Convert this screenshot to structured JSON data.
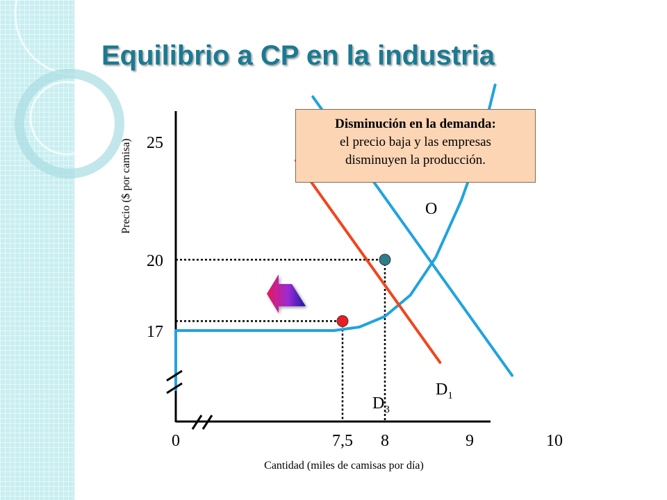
{
  "slide": {
    "title": "Equilibrio a CP en la industria"
  },
  "callout": {
    "heading": "Disminución en la demanda:",
    "body_line1": "el precio baja y las empresas",
    "body_line2": "disminuyen la producción."
  },
  "chart_data": {
    "type": "line",
    "title": "",
    "xlabel": "Cantidad (miles de camisas por día)",
    "ylabel": "Precio ($ por camisa)",
    "x_ticks": [
      {
        "value": 0,
        "label": "0"
      },
      {
        "value": 7.5,
        "label": "7,5"
      },
      {
        "value": 8,
        "label": "8"
      },
      {
        "value": 9,
        "label": "9"
      },
      {
        "value": 10,
        "label": "10"
      }
    ],
    "y_ticks": [
      {
        "value": 17,
        "label": "17"
      },
      {
        "value": 20,
        "label": "20"
      },
      {
        "value": 25,
        "label": "25"
      }
    ],
    "axis_breaks": true,
    "series": [
      {
        "name": "O",
        "color": "#22a3dd",
        "points": [
          [
            0,
            14.5
          ],
          [
            0,
            17
          ],
          [
            7.4,
            17
          ],
          [
            7.7,
            17.15
          ],
          [
            8.0,
            17.6
          ],
          [
            8.3,
            18.5
          ],
          [
            8.6,
            20.1
          ],
          [
            8.9,
            22.5
          ],
          [
            9.1,
            24.5
          ],
          [
            9.3,
            27.4
          ]
        ]
      },
      {
        "name": "D1",
        "name_main": "D",
        "name_sub": "1",
        "color": "#22a3dd",
        "points": [
          [
            7.15,
            26.9
          ],
          [
            9.5,
            15.1
          ]
        ]
      },
      {
        "name": "D3",
        "name_main": "D",
        "name_sub": "3",
        "color": "#f0461c",
        "points": [
          [
            6.95,
            24.2
          ],
          [
            8.65,
            15.65
          ]
        ]
      }
    ],
    "equilibria": [
      {
        "x": 8,
        "y": 20,
        "color": "#2e7d8c"
      },
      {
        "x": 7.5,
        "y": 17.4,
        "color": "#e81d25"
      }
    ],
    "shift_arrow": {
      "direction": "left",
      "from_color": "#1a1aa8",
      "to_color": "#e8195a"
    }
  }
}
